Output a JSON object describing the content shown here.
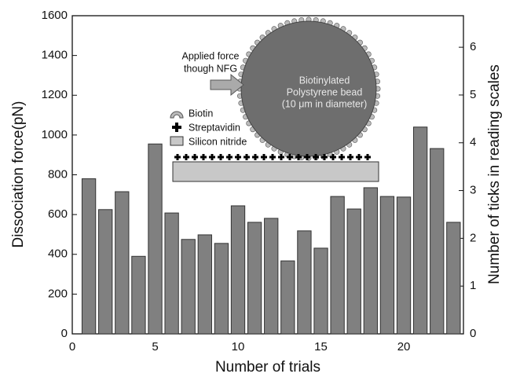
{
  "chart_data": {
    "type": "bar",
    "x_label": "Number of trials",
    "y_label": "Dissociation force(pN)",
    "y2_label": "Number of ticks in reading scales",
    "x": [
      1,
      2,
      3,
      4,
      5,
      6,
      7,
      8,
      9,
      10,
      11,
      12,
      13,
      14,
      15,
      16,
      17,
      18,
      19,
      20,
      21,
      22,
      23
    ],
    "values": [
      780,
      625,
      715,
      390,
      955,
      608,
      475,
      498,
      455,
      644,
      561,
      581,
      367,
      518,
      431,
      691,
      628,
      735,
      691,
      688,
      1040,
      932,
      561
    ],
    "color": "#808080",
    "xlim": [
      0,
      23.6
    ],
    "xticks": [
      0,
      5,
      10,
      15,
      20
    ],
    "ylim": [
      0,
      1600
    ],
    "yticks": [
      0,
      200,
      400,
      600,
      800,
      1000,
      1200,
      1400,
      1600
    ],
    "y2lim": [
      0,
      6.66
    ],
    "y2ticks": [
      0,
      1,
      2,
      3,
      4,
      5,
      6
    ],
    "annotations": {
      "applied_force": [
        "Applied force",
        "though NFG"
      ],
      "bead": [
        "Biotinylated",
        "Polystyrene bead",
        "(10 μm in diameter)"
      ],
      "legend": [
        "Biotin",
        "Streptavidin",
        "Silicon nitride"
      ]
    }
  }
}
